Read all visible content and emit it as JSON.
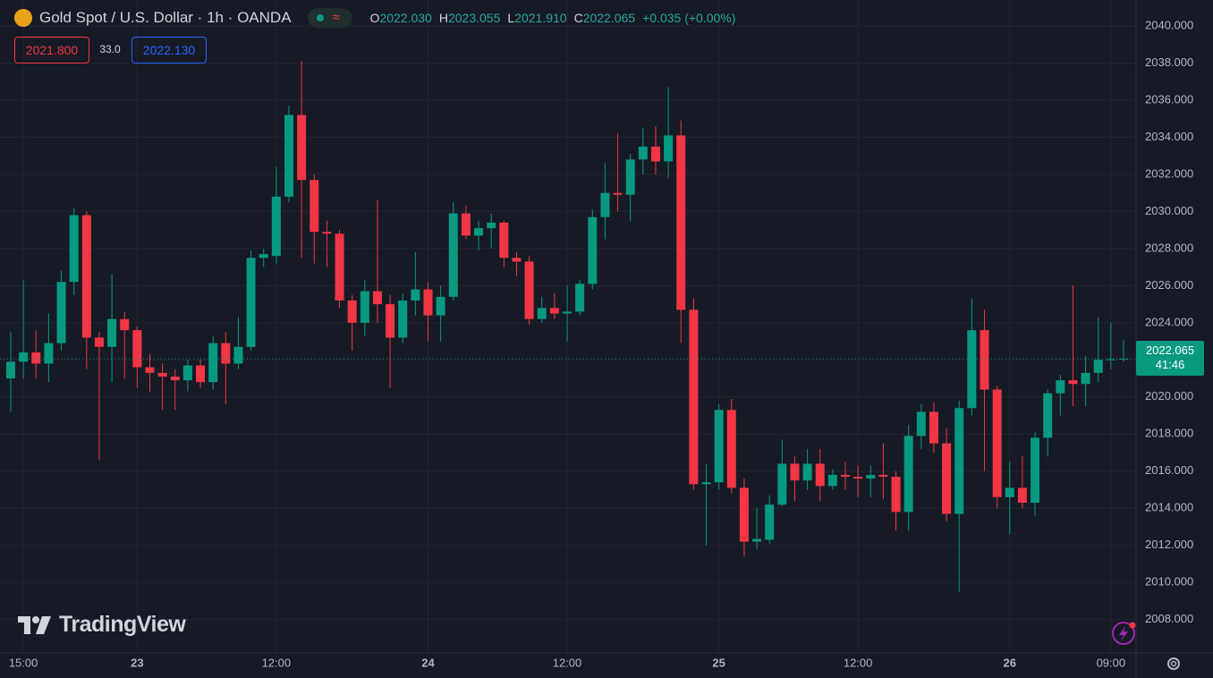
{
  "header": {
    "title": "Gold Spot / U.S. Dollar · 1h · OANDA",
    "ohlc": [
      {
        "label": "O",
        "value": "2022.030"
      },
      {
        "label": "H",
        "value": "2023.055"
      },
      {
        "label": "L",
        "value": "2021.910"
      },
      {
        "label": "C",
        "value": "2022.065"
      }
    ],
    "change": "+0.035 (+0.00%)",
    "bid": "2021.800",
    "spread": "33.0",
    "ask": "2022.130",
    "countdown": "41:46",
    "branding": "TradingView"
  },
  "chart_data": {
    "type": "candlestick",
    "up_color": "#089981",
    "down_color": "#f23645",
    "grid": true,
    "categories": [
      null,
      "15:00",
      null,
      null,
      null,
      null,
      null,
      null,
      null,
      null,
      "23",
      null,
      null,
      null,
      null,
      null,
      null,
      null,
      null,
      null,
      null,
      "12:00",
      null,
      null,
      null,
      null,
      null,
      null,
      null,
      null,
      null,
      null,
      null,
      "24",
      null,
      null,
      null,
      null,
      null,
      null,
      null,
      null,
      null,
      null,
      "12:00",
      null,
      null,
      null,
      null,
      null,
      null,
      null,
      null,
      null,
      null,
      null,
      "25",
      null,
      null,
      null,
      null,
      null,
      null,
      null,
      null,
      null,
      null,
      "12:00",
      null,
      null,
      null,
      null,
      null,
      null,
      null,
      null,
      null,
      null,
      null,
      "26",
      null,
      null,
      null,
      null,
      null,
      null,
      null,
      "09:00",
      null
    ],
    "open": [
      2021.0,
      2021.9,
      2022.4,
      2021.8,
      2022.9,
      2026.2,
      2029.8,
      2023.2,
      2022.7,
      2024.2,
      2023.6,
      2021.6,
      2021.3,
      2021.1,
      2020.9,
      2021.7,
      2020.8,
      2022.9,
      2021.8,
      2022.7,
      2027.5,
      2027.6,
      2030.8,
      2035.2,
      2031.7,
      2028.9,
      2028.8,
      2025.2,
      2024.0,
      2025.7,
      2025.0,
      2023.2,
      2025.2,
      2025.8,
      2024.4,
      2025.4,
      2029.9,
      2028.7,
      2029.1,
      2029.4,
      2027.5,
      2027.3,
      2024.2,
      2024.8,
      2024.5,
      2024.6,
      2026.1,
      2029.7,
      2031.0,
      2030.9,
      2032.8,
      2033.5,
      2032.7,
      2034.1,
      2024.7,
      2015.3,
      2015.4,
      2019.3,
      2015.1,
      2012.2,
      2012.3,
      2014.2,
      2016.4,
      2015.5,
      2016.4,
      2015.2,
      2015.8,
      2015.7,
      2015.6,
      2015.8,
      2015.7,
      2013.8,
      2017.9,
      2019.2,
      2017.5,
      2013.7,
      2019.4,
      2023.6,
      2020.4,
      2014.6,
      2015.1,
      2014.3,
      2017.8,
      2020.2,
      2020.9,
      2020.7,
      2021.3,
      2022.0,
      2022.03
    ],
    "high": [
      2023.5,
      2026.3,
      2023.6,
      2024.5,
      2026.8,
      2030.2,
      2030.0,
      2023.5,
      2026.6,
      2024.6,
      2023.8,
      2022.3,
      2021.8,
      2021.5,
      2022.0,
      2022.0,
      2023.3,
      2023.5,
      2024.3,
      2027.9,
      2028.0,
      2032.4,
      2035.7,
      2038.1,
      2032.0,
      2029.5,
      2029.0,
      2025.5,
      2026.3,
      2030.6,
      2025.5,
      2025.6,
      2027.8,
      2026.2,
      2026.0,
      2030.5,
      2030.3,
      2029.5,
      2029.9,
      2029.5,
      2027.8,
      2027.6,
      2025.4,
      2025.6,
      2026.0,
      2026.3,
      2030.1,
      2032.6,
      2034.2,
      2033.1,
      2034.5,
      2034.6,
      2036.7,
      2034.9,
      2025.3,
      2016.4,
      2019.6,
      2019.9,
      2015.6,
      2014.0,
      2014.7,
      2017.7,
      2016.8,
      2017.2,
      2017.2,
      2016.1,
      2016.5,
      2016.3,
      2016.3,
      2017.5,
      2016.0,
      2018.5,
      2019.6,
      2019.7,
      2018.3,
      2019.8,
      2025.3,
      2024.7,
      2020.6,
      2016.5,
      2016.8,
      2018.1,
      2020.4,
      2021.2,
      2026.0,
      2022.2,
      2024.3,
      2024.0,
      2023.055
    ],
    "low": [
      2019.2,
      2021.0,
      2021.0,
      2020.8,
      2022.5,
      2025.5,
      2021.5,
      2016.6,
      2020.8,
      2021.0,
      2020.5,
      2020.3,
      2019.3,
      2019.3,
      2020.3,
      2020.5,
      2020.4,
      2019.6,
      2021.5,
      2022.5,
      2027.0,
      2027.2,
      2030.5,
      2027.5,
      2027.2,
      2027.0,
      2024.8,
      2022.5,
      2023.3,
      2024.0,
      2020.5,
      2022.9,
      2024.4,
      2023.0,
      2023.0,
      2025.2,
      2028.5,
      2027.9,
      2028.0,
      2027.0,
      2026.5,
      2023.9,
      2024.0,
      2024.2,
      2023.0,
      2024.4,
      2025.8,
      2028.5,
      2030.0,
      2029.5,
      2032.0,
      2032.0,
      2031.8,
      2022.9,
      2015.0,
      2012.0,
      2015.0,
      2014.8,
      2011.4,
      2011.8,
      2012.1,
      2014.1,
      2014.4,
      2015.0,
      2014.4,
      2015.0,
      2015.0,
      2014.6,
      2014.6,
      2014.5,
      2012.8,
      2012.8,
      2017.2,
      2017.0,
      2013.3,
      2009.5,
      2019.0,
      2016.0,
      2014.0,
      2012.6,
      2014.0,
      2013.6,
      2016.8,
      2019.0,
      2019.5,
      2019.5,
      2020.8,
      2021.5,
      2021.91
    ],
    "close": [
      2021.9,
      2022.4,
      2021.8,
      2022.9,
      2026.2,
      2029.8,
      2023.2,
      2022.7,
      2024.2,
      2023.6,
      2021.6,
      2021.3,
      2021.1,
      2020.9,
      2021.7,
      2020.8,
      2022.9,
      2021.8,
      2022.7,
      2027.5,
      2027.7,
      2030.8,
      2035.2,
      2031.7,
      2028.9,
      2028.8,
      2025.2,
      2024.0,
      2025.7,
      2025.0,
      2023.2,
      2025.2,
      2025.8,
      2024.4,
      2025.4,
      2029.9,
      2028.7,
      2029.1,
      2029.4,
      2027.5,
      2027.3,
      2024.2,
      2024.8,
      2024.5,
      2024.6,
      2026.1,
      2029.7,
      2031.0,
      2030.9,
      2032.8,
      2033.5,
      2032.7,
      2034.1,
      2024.7,
      2015.3,
      2015.4,
      2019.3,
      2015.1,
      2012.2,
      2012.35,
      2014.2,
      2016.4,
      2015.5,
      2016.4,
      2015.2,
      2015.8,
      2015.7,
      2015.6,
      2015.8,
      2015.7,
      2013.8,
      2017.9,
      2019.2,
      2017.5,
      2013.7,
      2019.4,
      2023.6,
      2020.4,
      2014.6,
      2015.1,
      2014.3,
      2017.8,
      2020.2,
      2020.9,
      2020.7,
      2021.3,
      2022.0,
      2022.03,
      2022.065
    ],
    "ylim": [
      2006.2,
      2041.4
    ],
    "yticks": [
      {
        "value": 2008,
        "label": "2008.000"
      },
      {
        "value": 2010,
        "label": "2010.000"
      },
      {
        "value": 2012,
        "label": "2012.000"
      },
      {
        "value": 2014,
        "label": "2014.000"
      },
      {
        "value": 2016,
        "label": "2016.000"
      },
      {
        "value": 2018,
        "label": "2018.000"
      },
      {
        "value": 2020,
        "label": "2020.000"
      },
      {
        "value": 2022,
        "label": "2022.000"
      },
      {
        "value": 2024,
        "label": "2024.000"
      },
      {
        "value": 2026,
        "label": "2026.000"
      },
      {
        "value": 2028,
        "label": "2028.000"
      },
      {
        "value": 2030,
        "label": "2030.000"
      },
      {
        "value": 2032,
        "label": "2032.000"
      },
      {
        "value": 2034,
        "label": "2034.000"
      },
      {
        "value": 2036,
        "label": "2036.000"
      },
      {
        "value": 2038,
        "label": "2038.000"
      },
      {
        "value": 2040,
        "label": "2040.000"
      }
    ]
  }
}
